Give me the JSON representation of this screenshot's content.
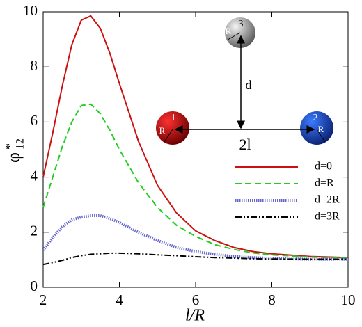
{
  "chart_data": {
    "type": "line",
    "xlabel": "l/R",
    "ylabel": "φ",
    "ylabel_sup": "*",
    "ylabel_sub": "12",
    "x": [
      2,
      2.25,
      2.5,
      2.75,
      3,
      3.25,
      3.5,
      3.75,
      4,
      4.5,
      5,
      5.5,
      6,
      6.5,
      7,
      7.5,
      8,
      9,
      10
    ],
    "series": [
      {
        "name": "d=0",
        "color": "#cc1111",
        "style": "solid",
        "values": [
          4.0,
          5.6,
          7.3,
          8.8,
          9.7,
          9.85,
          9.4,
          8.5,
          7.4,
          5.3,
          3.7,
          2.7,
          2.05,
          1.7,
          1.45,
          1.3,
          1.22,
          1.12,
          1.08
        ]
      },
      {
        "name": "d=R",
        "color": "#22cc22",
        "style": "dashed",
        "values": [
          2.9,
          4.0,
          5.1,
          6.0,
          6.6,
          6.65,
          6.3,
          5.7,
          5.0,
          3.8,
          2.9,
          2.25,
          1.85,
          1.55,
          1.38,
          1.25,
          1.18,
          1.1,
          1.06
        ]
      },
      {
        "name": "d=2R",
        "color": "#6666cc",
        "style": "dotted",
        "values": [
          1.35,
          1.8,
          2.2,
          2.45,
          2.55,
          2.6,
          2.6,
          2.5,
          2.35,
          2.0,
          1.7,
          1.45,
          1.3,
          1.2,
          1.12,
          1.08,
          1.05,
          1.02,
          1.02
        ]
      },
      {
        "name": "d=3R",
        "color": "#000000",
        "style": "dashdotdot",
        "values": [
          0.83,
          0.9,
          0.98,
          1.08,
          1.15,
          1.2,
          1.22,
          1.24,
          1.24,
          1.22,
          1.18,
          1.15,
          1.11,
          1.08,
          1.06,
          1.04,
          1.03,
          1.02,
          1.02
        ]
      }
    ],
    "xlim": [
      2,
      10
    ],
    "xticks": [
      2,
      4,
      6,
      8,
      10
    ],
    "ylim": [
      0,
      10
    ],
    "yticks": [
      0,
      2,
      4,
      6,
      8,
      10
    ],
    "legend": "right",
    "annotations": {
      "sphere1": "1",
      "sphere2": "2",
      "sphere3": "3",
      "radius1": "R",
      "radius2": "R",
      "radius3": "R",
      "distance": "d",
      "spacing": "2l"
    }
  }
}
